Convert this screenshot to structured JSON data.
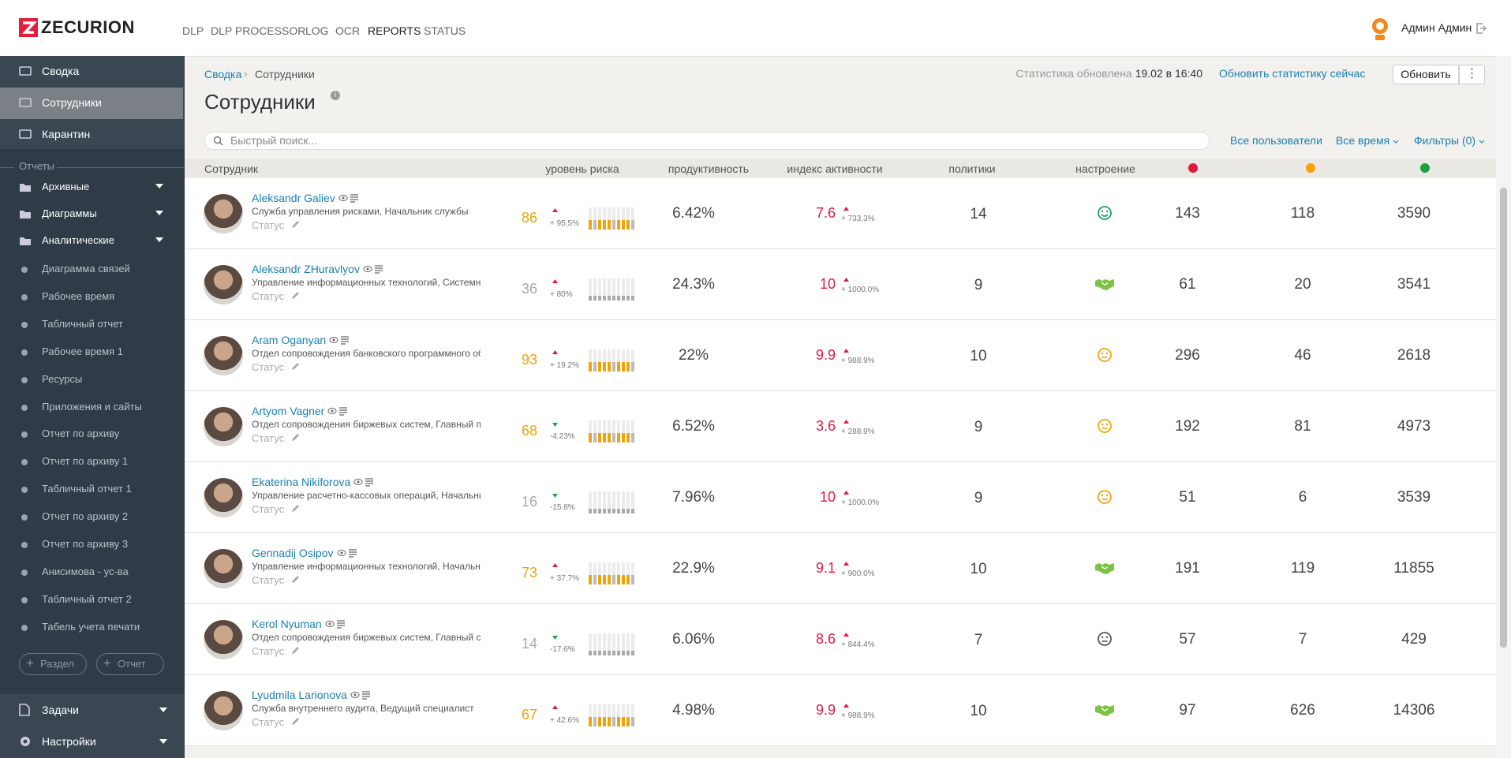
{
  "header": {
    "logo": "ZECURION",
    "nav": [
      "DLP",
      "DLP PROCESSOR",
      "LOG",
      "OCR",
      "REPORTS",
      "STATUS"
    ],
    "user": "Админ Админ"
  },
  "sidebar": {
    "top": [
      "Сводка",
      "Сотрудники",
      "Карантин"
    ],
    "section": "Отчеты",
    "folders": [
      "Архивные",
      "Диаграммы",
      "Аналитические"
    ],
    "reports": [
      "Диаграмма связей",
      "Рабочее время",
      "Табличный отчет",
      "Рабочее время 1",
      "Ресурсы",
      "Приложения и сайты",
      "Отчет по архиву",
      "Отчет по архиву 1",
      "Табличный отчет 1",
      "Отчет по архиву 2",
      "Отчет по архиву 3",
      "Анисимова - ус-ва",
      "Табличный отчет 2",
      "Табель учета печати"
    ],
    "buttons": [
      "Раздел",
      "Отчет"
    ],
    "bottom": [
      "Задачи",
      "Настройки"
    ]
  },
  "toolbar": {
    "breadcrumb": [
      "Сводка",
      "Сотрудники"
    ],
    "title": "Сотрудники",
    "stats_label": "Статистика обновлена",
    "stats_time": "19.02 в 16:40",
    "refresh_link": "Обновить статистику сейчас",
    "refresh_button": "Обновить",
    "search_placeholder": "Быстрый поиск...",
    "filters": [
      "Все пользователи",
      "Все время",
      "Фильтры (0)"
    ]
  },
  "table": {
    "columns": [
      "Сотрудник",
      "уровень риска",
      "продуктивность",
      "индекс активности",
      "политики",
      "настроение"
    ],
    "dot_colors": [
      "#e8173f",
      "#f5a20a",
      "#1a9f43"
    ],
    "rows": [
      {
        "name": "Aleksandr Galiev",
        "department": "Служба управления рисками, Начальник службы",
        "status": "Статус",
        "risk": 86,
        "risk_color": "#f0a30a",
        "risk_change": "+ 95.5%",
        "productivity": "6.42%",
        "activity": 7.6,
        "activity_change": "+ 733.3%",
        "policies": 14,
        "mood": "smile",
        "mood_color": "#1a9f6a",
        "counts": [
          143,
          118,
          3590
        ]
      },
      {
        "name": "Aleksandr ZHuravlyov",
        "department": "Управление информационных технологий, Системны",
        "status": "Статус",
        "risk": 36,
        "risk_color": "#aaaaaa",
        "risk_change": "+ 80%",
        "productivity": "24.3%",
        "activity": 10,
        "activity_change": "+ 1000.0%",
        "policies": 9,
        "mood": "handshake",
        "mood_color": "#7cc243",
        "counts": [
          61,
          20,
          3541
        ]
      },
      {
        "name": "Aram Oganyan",
        "department": "Отдел сопровождения банковского программного об",
        "status": "Статус",
        "risk": 93,
        "risk_color": "#f0a30a",
        "risk_change": "+ 19.2%",
        "productivity": "22%",
        "activity": 9.9,
        "activity_change": "+ 988.9%",
        "policies": 10,
        "mood": "neutral",
        "mood_color": "#f5a20a",
        "counts": [
          296,
          46,
          2618
        ]
      },
      {
        "name": "Artyom Vagner",
        "department": "Отдел сопровождения биржевых систем, Главный пр",
        "status": "Статус",
        "risk": 68,
        "risk_color": "#f0a30a",
        "risk_change": "-4.23%",
        "productivity": "6.52%",
        "activity": 3.6,
        "activity_change": "+ 288.9%",
        "policies": 9,
        "mood": "neutral",
        "mood_color": "#f5a20a",
        "counts": [
          192,
          81,
          4973
        ]
      },
      {
        "name": "Ekaterina Nikiforova",
        "department": "Управление расчетно-кассовых операций, Начальни",
        "status": "Статус",
        "risk": 16,
        "risk_color": "#aaaaaa",
        "risk_change": "-15.8%",
        "productivity": "7.96%",
        "activity": 10,
        "activity_change": "+ 1000.0%",
        "policies": 9,
        "mood": "neutral",
        "mood_color": "#f5a20a",
        "counts": [
          51,
          6,
          3539
        ]
      },
      {
        "name": "Gennadij Osipov",
        "department": "Управление информационных технологий, Начальни",
        "status": "Статус",
        "risk": 73,
        "risk_color": "#f0a30a",
        "risk_change": "+ 37.7%",
        "productivity": "22.9%",
        "activity": 9.1,
        "activity_change": "+ 900.0%",
        "policies": 10,
        "mood": "handshake",
        "mood_color": "#7cc243",
        "counts": [
          191,
          119,
          11855
        ]
      },
      {
        "name": "Kerol Nyuman",
        "department": "Отдел сопровождения биржевых систем, Главный сп",
        "status": "Статус",
        "risk": 14,
        "risk_color": "#aaaaaa",
        "risk_change": "-17.6%",
        "productivity": "6.06%",
        "activity": 8.6,
        "activity_change": "+ 844.4%",
        "policies": 7,
        "mood": "neutral",
        "mood_color": "#555555",
        "counts": [
          57,
          7,
          429
        ]
      },
      {
        "name": "Lyudmila Larionova",
        "department": "Служба внутреннего аудита, Ведущий специалист",
        "status": "Статус",
        "risk": 67,
        "risk_color": "#f0a30a",
        "risk_change": "+ 42.6%",
        "productivity": "4.98%",
        "activity": 9.9,
        "activity_change": "+ 988.9%",
        "policies": 10,
        "mood": "handshake",
        "mood_color": "#7cc243",
        "counts": [
          97,
          626,
          14306
        ]
      }
    ]
  }
}
